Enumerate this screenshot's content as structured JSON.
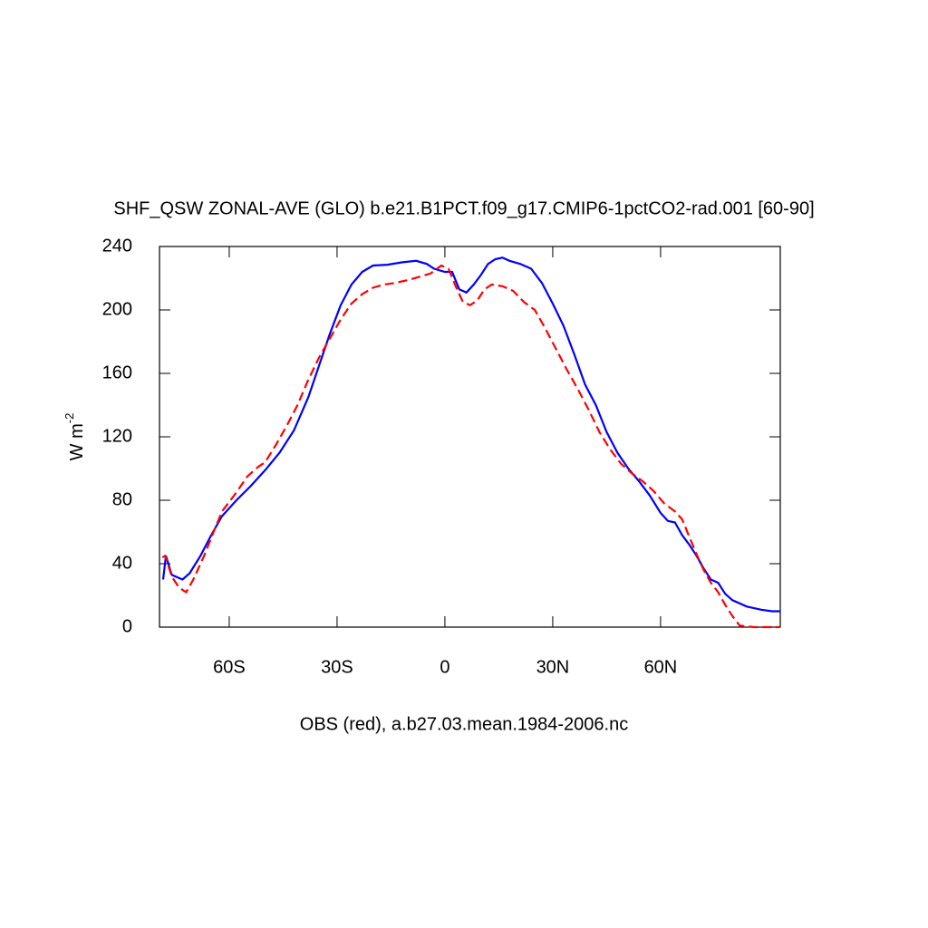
{
  "chart_data": {
    "type": "line",
    "title": "SHF_QSW ZONAL-AVE (GLO) b.e21.B1PCT.f09_g17.CMIP6-1pctCO2-rad.001 [60-90]",
    "xlabel": "OBS (red), a.b27.03.mean.1984-2006.nc",
    "ylabel": "W m",
    "ylabel_sup": "-2",
    "xlim": [
      -79.4,
      93.3
    ],
    "ylim": [
      0,
      240
    ],
    "xticks": [
      {
        "value": -60,
        "label": "60S"
      },
      {
        "value": -30,
        "label": "30S"
      },
      0,
      {
        "value": 30,
        "label": "30N"
      },
      {
        "value": 60,
        "label": "60N"
      }
    ],
    "yticks": [
      0,
      40,
      80,
      120,
      160,
      200,
      240
    ],
    "series": [
      {
        "color": "#0000ff",
        "dash": "solid",
        "x": [
          -78.4,
          -77.6,
          -76,
          -73,
          -71,
          -68,
          -65,
          -62,
          -58,
          -54,
          -50,
          -46,
          -42,
          -38,
          -35,
          -32,
          -29,
          -26,
          -23,
          -20,
          -16,
          -12,
          -8,
          -5,
          -3,
          0,
          2,
          4,
          6,
          8,
          10,
          12,
          14,
          16,
          18,
          21,
          24,
          27,
          30,
          33,
          36,
          39,
          42,
          45,
          48,
          51,
          54,
          57,
          60,
          62,
          64,
          66,
          68,
          70,
          72,
          74,
          76,
          78,
          80,
          84,
          88,
          91,
          93.3
        ],
        "values": [
          30,
          45,
          33,
          30,
          34,
          45,
          58,
          70,
          80,
          89,
          99,
          110,
          124,
          145,
          165,
          185,
          203,
          216,
          224,
          228,
          228.5,
          230,
          231,
          229,
          226,
          224,
          224,
          213,
          211,
          216,
          222,
          229,
          232,
          233,
          231,
          229,
          226,
          217,
          204,
          190,
          172,
          153,
          140,
          123,
          110,
          100,
          92,
          83,
          72,
          67,
          66,
          58,
          52,
          45,
          37,
          30,
          28,
          21,
          17,
          13,
          11,
          10,
          10
        ]
      },
      {
        "color": "#ff0000",
        "dash": "dashed",
        "x": [
          -78.6,
          -77.8,
          -76,
          -74,
          -72,
          -70,
          -67,
          -64,
          -62,
          -58,
          -55,
          -52,
          -50,
          -47,
          -44,
          -41,
          -38,
          -35,
          -32,
          -29,
          -26,
          -23,
          -20,
          -17,
          -14,
          -10,
          -7,
          -4,
          -1,
          1,
          3,
          5,
          7,
          9,
          11,
          13,
          16,
          19,
          22,
          25,
          28,
          31,
          34,
          37,
          40,
          43,
          46,
          49,
          52,
          55,
          58,
          61,
          64,
          66,
          68,
          70,
          72,
          74,
          76,
          78,
          80,
          82,
          86,
          93
        ],
        "values": [
          44,
          45,
          32,
          25,
          22,
          30,
          45,
          62,
          73,
          85,
          95,
          101,
          104,
          115,
          127,
          140,
          156,
          170,
          182,
          194,
          204,
          210,
          214,
          216,
          217,
          219,
          221,
          223,
          228,
          226,
          215,
          205,
          203,
          206,
          213,
          216,
          215,
          212,
          205,
          200,
          188,
          175,
          162,
          150,
          137,
          123,
          112,
          103,
          97,
          92,
          86,
          78,
          73,
          68,
          57,
          46,
          36,
          28,
          22,
          14,
          7,
          1,
          0,
          0
        ]
      }
    ]
  }
}
